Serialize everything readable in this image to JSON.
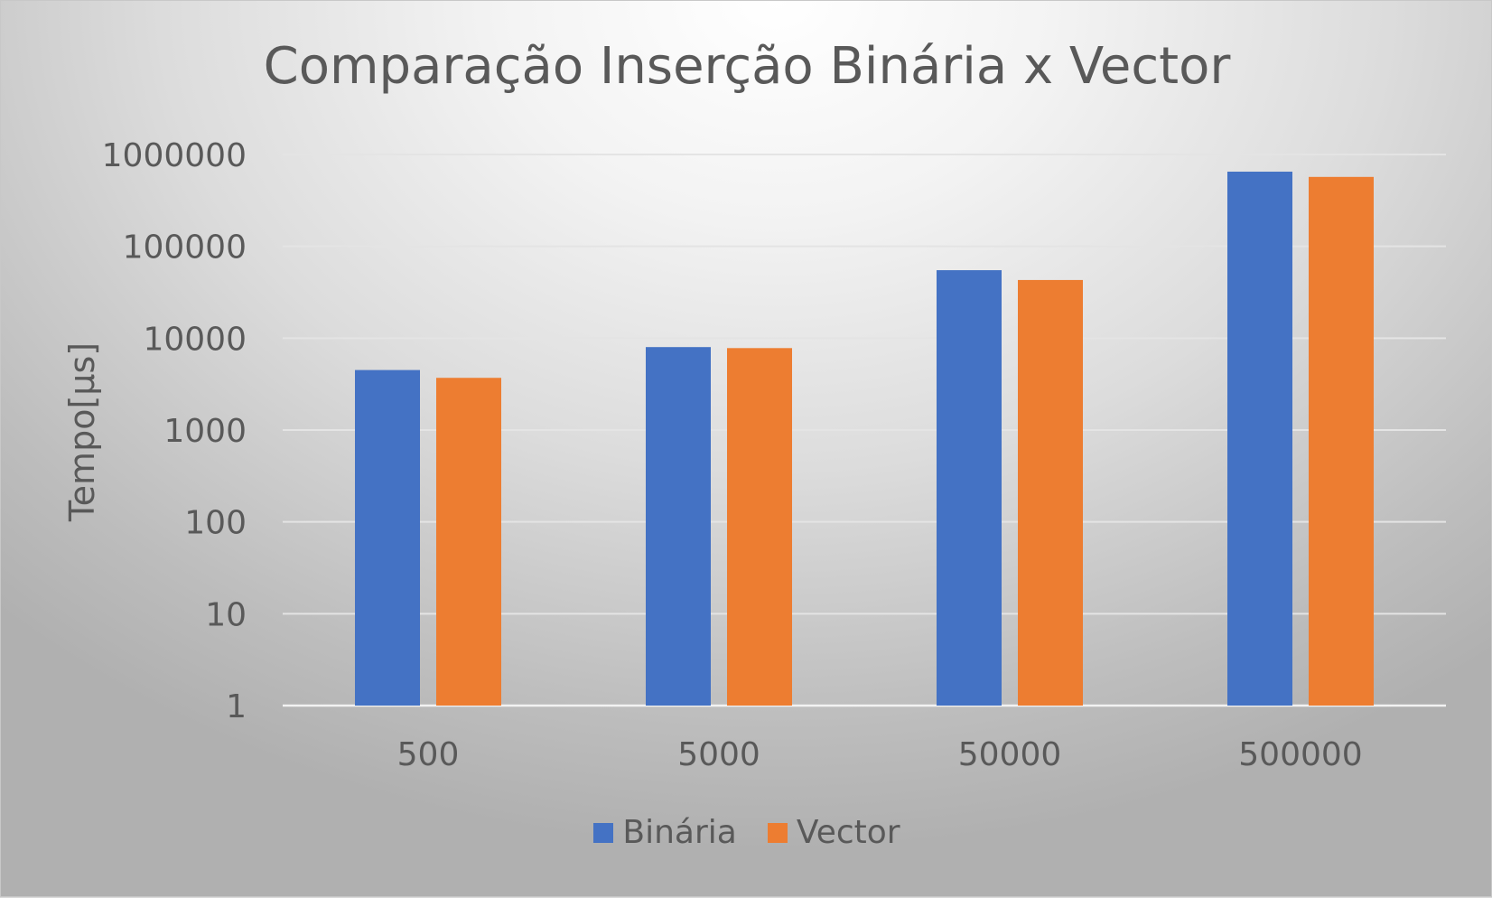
{
  "chart_data": {
    "type": "bar",
    "title": "Comparação Inserção Binária x Vector",
    "ylabel": "Tempo[µs]",
    "xlabel": "",
    "yscale": "log",
    "ylim": [
      1,
      1000000
    ],
    "yticks": [
      "1",
      "10",
      "100",
      "1000",
      "10000",
      "100000",
      "1000000"
    ],
    "categories": [
      "500",
      "5000",
      "50000",
      "500000"
    ],
    "series": [
      {
        "name": "Binária",
        "color": "#4472C4",
        "values": [
          4500,
          8000,
          55000,
          650000
        ]
      },
      {
        "name": "Vector",
        "color": "#ED7D31",
        "values": [
          3700,
          7800,
          43000,
          570000
        ]
      }
    ],
    "grid": true,
    "legend_position": "bottom"
  }
}
